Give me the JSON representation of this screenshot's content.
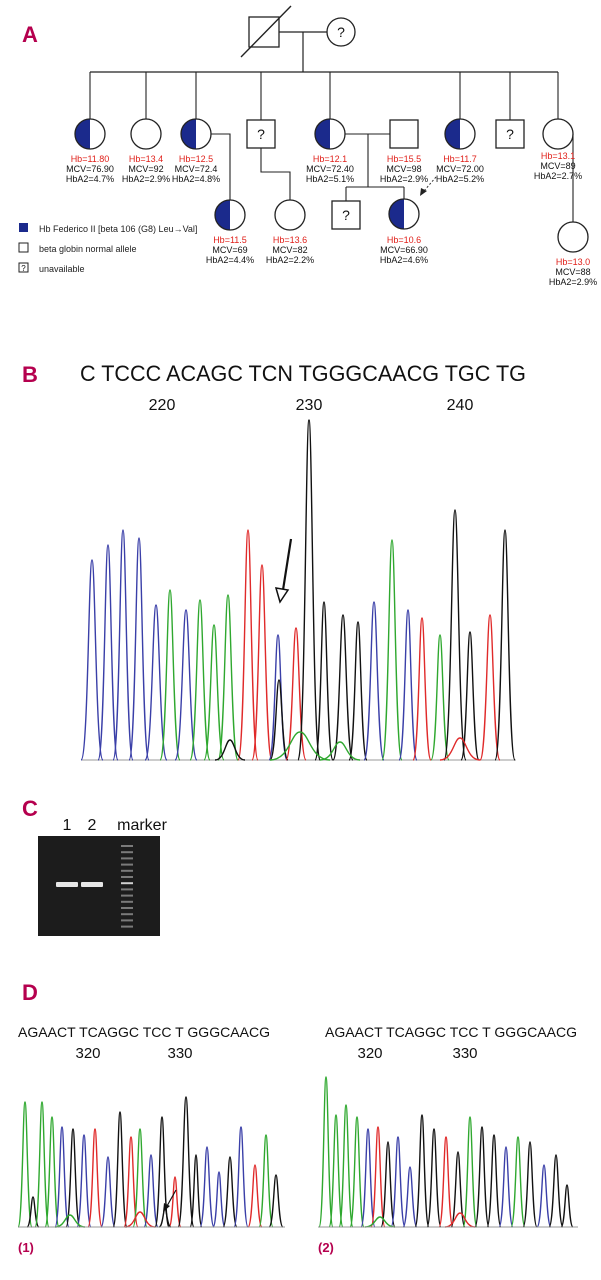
{
  "colors": {
    "panel_letter": "#b5004e",
    "affected": "#1b2a8c",
    "hb_value": "#e0201a",
    "trace_A": "#2fa82f",
    "trace_C": "#3a3fa8",
    "trace_G": "#111111",
    "trace_T": "#e02a2a",
    "gel_bg": "#1c1c1c",
    "gel_band": "#e6e6e6"
  },
  "panels": {
    "a": "A",
    "b": "B",
    "c": "C",
    "d": "D"
  },
  "pedigree": {
    "founders": {
      "mother_symbol": "?"
    },
    "unknown_symbol": "?",
    "individuals": [
      {
        "hb": "Hb=11.80",
        "mcv": "MCV=76.90",
        "hba2": "HbA2=4.7%",
        "status": "affected"
      },
      {
        "hb": "Hb=13.4",
        "mcv": "MCV=92",
        "hba2": "HbA2=2.9%",
        "status": "normal"
      },
      {
        "hb": "Hb=12.5",
        "mcv": "MCV=72.4",
        "hba2": "HbA2=4.8%",
        "status": "affected"
      },
      {
        "hb": "Hb=12.1",
        "mcv": "MCV=72.40",
        "hba2": "HbA2=5.1%",
        "status": "affected"
      },
      {
        "hb": "Hb=15.5",
        "mcv": "MCV=98",
        "hba2": "HbA2=2.9%",
        "status": "normal"
      },
      {
        "hb": "Hb=11.7",
        "mcv": "MCV=72.00",
        "hba2": "HbA2=5.2%",
        "status": "affected"
      },
      {
        "hb": "Hb=13.1",
        "mcv": "MCV=89",
        "hba2": "HbA2=2.7%",
        "status": "normal"
      },
      {
        "hb": "Hb=11.5",
        "mcv": "MCV=69",
        "hba2": "HbA2=4.4%",
        "status": "affected"
      },
      {
        "hb": "Hb=13.6",
        "mcv": "MCV=82",
        "hba2": "HbA2=2.2%",
        "status": "normal"
      },
      {
        "hb": "Hb=10.6",
        "mcv": "MCV=66.90",
        "hba2": "HbA2=4.6%",
        "status": "affected"
      },
      {
        "hb": "Hb=13.0",
        "mcv": "MCV=88",
        "hba2": "HbA2=2.9%",
        "status": "normal"
      }
    ],
    "legend": [
      {
        "label": "Hb Federico II [beta 106 (G8) Leu→Val]",
        "symbol": "filled"
      },
      {
        "label": "beta globin normal allele",
        "symbol": "open"
      },
      {
        "label": "unavailable",
        "symbol": "?"
      }
    ]
  },
  "sequencing_b": {
    "sequence": "C TCCC ACAGC TCN TGGGCAACG TGC TG",
    "positions": [
      "220",
      "230",
      "240"
    ]
  },
  "gel": {
    "lanes": [
      "1",
      "2",
      "marker"
    ]
  },
  "sequencing_d": [
    {
      "sequence": "AGAACT TCAGGC TCC T GGGCAACG",
      "positions": [
        "320",
        "330"
      ],
      "label": "(1)"
    },
    {
      "sequence": "AGAACT TCAGGC TCC T GGGCAACG",
      "positions": [
        "320",
        "330"
      ],
      "label": "(2)"
    }
  ]
}
